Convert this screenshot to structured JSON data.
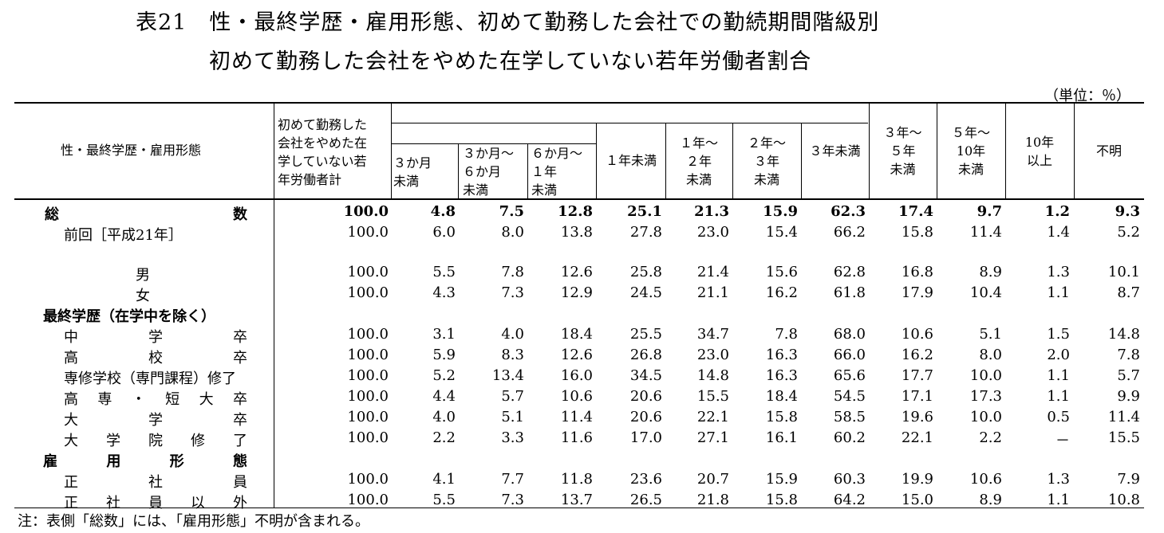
{
  "title_line1": "表21　性・最終学歴・雇用形態、初めて勤務した会社での勤続期間階級別",
  "title_line2": "初めて勤務した会社をやめた在学していない若年労働者割合",
  "unit": "（単位：％）",
  "headers": {
    "row_label": "性・最終学歴・雇用形態",
    "total": [
      "初めて勤務した",
      "会社をやめた在",
      "学していない若",
      "年労働者計"
    ],
    "m3": [
      "３か月",
      "未満"
    ],
    "m3_6": [
      "３か月～",
      "６か月",
      "未満"
    ],
    "m6_1y": [
      "６か月～",
      "１年",
      "未満"
    ],
    "lt1y": "１年未満",
    "y1_2": [
      "１年～",
      "２年",
      "未満"
    ],
    "y2_3": [
      "２年～",
      "３年",
      "未満"
    ],
    "lt3y": "３年未満",
    "y3_5": [
      "３年～",
      "５年",
      "未満"
    ],
    "y5_10": [
      "５年～",
      "10年",
      "未満"
    ],
    "y10": [
      "10年",
      "以上"
    ],
    "unknown": "不明"
  },
  "rows": [
    {
      "label": "総数",
      "values": [
        "100.0",
        "4.8",
        "7.5",
        "12.8",
        "25.1",
        "21.3",
        "15.9",
        "62.3",
        "17.4",
        "9.7",
        "1.2",
        "9.3"
      ]
    },
    {
      "label": "前回［平成21年］",
      "values": [
        "100.0",
        "6.0",
        "8.0",
        "13.8",
        "27.8",
        "23.0",
        "15.4",
        "66.2",
        "15.8",
        "11.4",
        "1.4",
        "5.2"
      ]
    },
    {
      "label": "男",
      "values": [
        "100.0",
        "5.5",
        "7.8",
        "12.6",
        "25.8",
        "21.4",
        "15.6",
        "62.8",
        "16.8",
        "8.9",
        "1.3",
        "10.1"
      ]
    },
    {
      "label": "女",
      "values": [
        "100.0",
        "4.3",
        "7.3",
        "12.9",
        "24.5",
        "21.1",
        "16.2",
        "61.8",
        "17.9",
        "10.4",
        "1.1",
        "8.7"
      ]
    },
    {
      "label": "最終学歴（在学中を除く）",
      "values": []
    },
    {
      "label": "中学卒",
      "values": [
        "100.0",
        "3.1",
        "4.0",
        "18.4",
        "25.5",
        "34.7",
        "7.8",
        "68.0",
        "10.6",
        "5.1",
        "1.5",
        "14.8"
      ]
    },
    {
      "label": "高校卒",
      "values": [
        "100.0",
        "5.9",
        "8.3",
        "12.6",
        "26.8",
        "23.0",
        "16.3",
        "66.0",
        "16.2",
        "8.0",
        "2.0",
        "7.8"
      ]
    },
    {
      "label": "専修学校（専門課程）修了",
      "values": [
        "100.0",
        "5.2",
        "13.4",
        "16.0",
        "34.5",
        "14.8",
        "16.3",
        "65.6",
        "17.7",
        "10.0",
        "1.1",
        "5.7"
      ]
    },
    {
      "label": "高専・短大卒",
      "values": [
        "100.0",
        "4.4",
        "5.7",
        "10.6",
        "20.6",
        "15.5",
        "18.4",
        "54.5",
        "17.1",
        "17.3",
        "1.1",
        "9.9"
      ]
    },
    {
      "label": "大学卒",
      "values": [
        "100.0",
        "4.0",
        "5.1",
        "11.4",
        "20.6",
        "22.1",
        "15.8",
        "58.5",
        "19.6",
        "10.0",
        "0.5",
        "11.4"
      ]
    },
    {
      "label": "大学院修了",
      "values": [
        "100.0",
        "2.2",
        "3.3",
        "11.6",
        "17.0",
        "27.1",
        "16.1",
        "60.2",
        "22.1",
        "2.2",
        "－",
        "15.5"
      ]
    },
    {
      "label": "雇用形態",
      "values": []
    },
    {
      "label": "正社員",
      "values": [
        "100.0",
        "4.1",
        "7.7",
        "11.8",
        "23.6",
        "20.7",
        "15.9",
        "60.3",
        "19.9",
        "10.6",
        "1.3",
        "7.9"
      ]
    },
    {
      "label": "正社員以外",
      "values": [
        "100.0",
        "5.5",
        "7.3",
        "13.7",
        "26.5",
        "21.8",
        "15.8",
        "64.2",
        "15.0",
        "8.9",
        "1.1",
        "10.8"
      ]
    }
  ],
  "note": "注：表側「総数」には、「雇用形態」不明が含まれる。"
}
